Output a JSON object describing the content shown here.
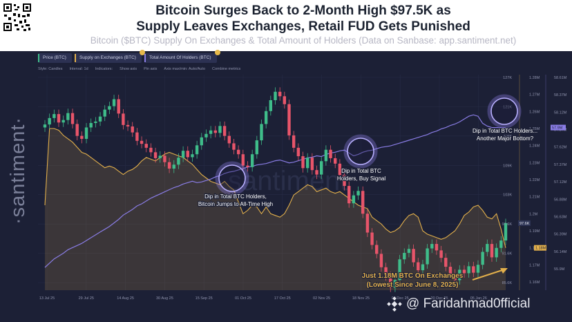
{
  "header": {
    "title_line1": "Bitcoin Surges Back to 2-Month High $97.5K as",
    "title_line2": "Supply Leaves Exchanges, Retail FUD Gets Punished",
    "subtitle": "Bitcoin ($BTC) Supply On Exchanges & Total Amount of Holders (Data on Sanbase: app.santiment.net)"
  },
  "tabs": [
    {
      "label": "Price (BTC)",
      "color": "#3fbd8a"
    },
    {
      "label": "Supply on Exchanges (BTC)",
      "color": "#e3b04b"
    },
    {
      "label": "Total Amount Of Holders (BTC)",
      "color": "#8a7de6"
    }
  ],
  "toolbar": [
    "Style: Candles",
    "Interval: 1d",
    "Indicators:",
    "Show axis",
    "Pin axis",
    "Axis max/min: Auto/Auto",
    "Combine metrics"
  ],
  "brand": {
    "side_word": "·santiment·",
    "watermark": "@ Faridahmad0fficial"
  },
  "annotations": {
    "a1": [
      "Dip in Total BTC Holders,",
      "Bitcoin Jumps to All-Time High"
    ],
    "a2": [
      "Dip in Total BTC",
      "Holders, Buy Signal"
    ],
    "a3": [
      "Dip in Total BTC Holders...",
      "Another Major Bottom?"
    ],
    "a4": [
      "Just 1.18M BTC On Exchanges",
      "(Lowest Since June 8, 2025)"
    ]
  },
  "chart_data": {
    "type": "line",
    "x_ticks": [
      "13 Jul 25",
      "29 Jul 25",
      "14 Aug 25",
      "30 Aug 25",
      "15 Sep 25",
      "01 Oct 25",
      "17 Oct 25",
      "02 Nov 25",
      "18 Nov 25",
      "04 Dec 25",
      "20 Dec 25",
      "05 Jan 26"
    ],
    "axes": {
      "price_ticks": [
        "127K",
        "121K",
        "115K",
        "109K",
        "103K",
        "97.6K",
        "91.6K",
        "85.6K"
      ],
      "supply_ticks": [
        "1.28M",
        "1.27M",
        "1.26M",
        "1.25M",
        "1.24M",
        "1.23M",
        "1.22M",
        "1.21M",
        "1.2M",
        "1.19M",
        "1.18M",
        "1.17M",
        "1.16M"
      ],
      "holders_ticks": [
        "58.61M",
        "58.37M",
        "58.12M",
        "57.87M",
        "57.62M",
        "57.37M",
        "57.12M",
        "56.88M",
        "56.63M",
        "56.39M",
        "56.14M",
        "55.9M"
      ]
    },
    "last_values": {
      "price": "97.6K",
      "supply": "1.18M",
      "holders": "57.9M"
    },
    "price_close_k": [
      117.5,
      118.8,
      119.6,
      117.9,
      118.4,
      119.8,
      117.6,
      115.2,
      114.6,
      116.9,
      117.8,
      118.1,
      119.1,
      120.5,
      121.2,
      122.6,
      119.7,
      117.4,
      117.1,
      115.9,
      114.2,
      113.6,
      112.8,
      111.9,
      110.7,
      111.2,
      109.9,
      108.6,
      109.4,
      110.8,
      112.2,
      110.9,
      111.5,
      113.3,
      114.9,
      115.6,
      116.3,
      115.8,
      117.2,
      115.2,
      113.7,
      112.4,
      111.5,
      109.2,
      108.9,
      111.5,
      114.3,
      117.6,
      120.2,
      122.4,
      124.1,
      123.2,
      121.6,
      115.3,
      112.8,
      111.1,
      108.7,
      110.8,
      108.3,
      107.4,
      110.1,
      112.4,
      110.7,
      109.6,
      107.3,
      105.1,
      101.6,
      103.2,
      104.1,
      99.5,
      95.7,
      93.2,
      91.4,
      88.7,
      86.9,
      84.6,
      86.1,
      90.3,
      91.6,
      92.4,
      89.7,
      88.1,
      89.3,
      92.5,
      93.4,
      92.1,
      90.6,
      88.8,
      87.4,
      86.1,
      88.2,
      87.5,
      88.9,
      87.6,
      89.2,
      91.8,
      93.4,
      90.7,
      92.6,
      94.1,
      97.6
    ],
    "supply_m": [
      1.205,
      1.25,
      1.25,
      1.249,
      1.246,
      1.244,
      1.242,
      1.239,
      1.236,
      1.235,
      1.233,
      1.231,
      1.229,
      1.227,
      1.228,
      1.227,
      1.225,
      1.223,
      1.225,
      1.226,
      1.228,
      1.231,
      1.233,
      1.232,
      1.231,
      1.233,
      1.235,
      1.236,
      1.235,
      1.234,
      1.233,
      1.231,
      1.229,
      1.226,
      1.223,
      1.221,
      1.219,
      1.218,
      1.217,
      1.219,
      1.216,
      1.214,
      1.207,
      1.2,
      1.202,
      1.205,
      1.204,
      1.2,
      1.204,
      1.2,
      1.199,
      1.198,
      1.2,
      1.205,
      1.211,
      1.213,
      1.215,
      1.217,
      1.216,
      1.213,
      1.214,
      1.215,
      1.213,
      1.212,
      1.213,
      1.211,
      1.209,
      1.207,
      1.205,
      1.204,
      1.203,
      1.198,
      1.196,
      1.194,
      1.191,
      1.189,
      1.19,
      1.192,
      1.196,
      1.199,
      1.2,
      1.198,
      1.19,
      1.188,
      1.187,
      1.186,
      1.185,
      1.186,
      1.188,
      1.19,
      1.194,
      1.199,
      1.201,
      1.204,
      1.205,
      1.202,
      1.198,
      1.197,
      1.2,
      1.191,
      1.18
    ],
    "holders_m": [
      55.92,
      55.98,
      56.04,
      56.08,
      56.12,
      56.17,
      56.2,
      56.23,
      56.26,
      56.3,
      56.34,
      56.38,
      56.42,
      56.46,
      56.5,
      56.55,
      56.6,
      56.66,
      56.7,
      56.74,
      56.79,
      56.82,
      56.86,
      56.9,
      56.93,
      56.96,
      56.99,
      57.02,
      57.05,
      57.07,
      57.1,
      57.12,
      57.14,
      57.12,
      57.13,
      57.15,
      57.17,
      57.2,
      57.22,
      57.25,
      57.27,
      57.28,
      57.3,
      57.32,
      57.34,
      57.35,
      57.37,
      57.38,
      57.39,
      57.41,
      57.43,
      57.44,
      57.42,
      57.4,
      57.41,
      57.43,
      57.45,
      57.47,
      57.48,
      57.5,
      57.49,
      57.52,
      57.54,
      57.55,
      57.57,
      57.58,
      57.54,
      57.5,
      57.52,
      57.55,
      57.57,
      57.58,
      57.6,
      57.62,
      57.63,
      57.64,
      57.66,
      57.68,
      57.7,
      57.72,
      57.74,
      57.76,
      57.78,
      57.8,
      57.83,
      57.85,
      57.88,
      57.9,
      57.93,
      57.95,
      57.98,
      58.02,
      58.06,
      58.08,
      58.06,
      57.96,
      57.92,
      57.9,
      57.9,
      57.9,
      57.9
    ]
  }
}
